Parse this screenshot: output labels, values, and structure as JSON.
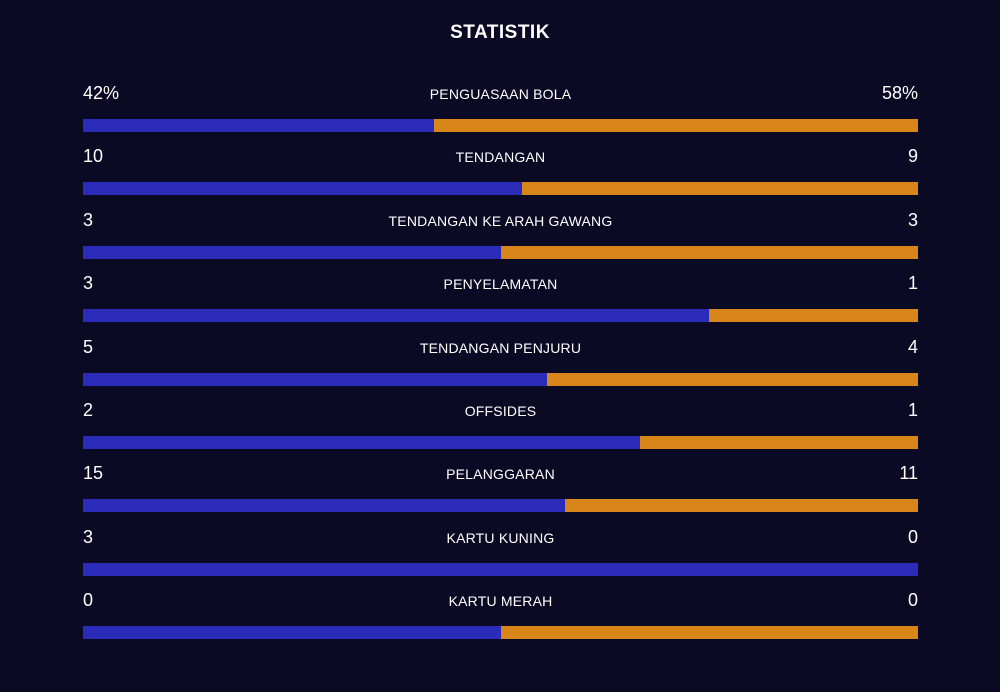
{
  "title": "STATISTIK",
  "colors": {
    "background": "#0a0a24",
    "home": "#2a2bb8",
    "away": "#d8851a"
  },
  "stats": [
    {
      "label": "PENGUASAAN BOLA",
      "home": "42%",
      "away": "58%",
      "home_share": 0.42
    },
    {
      "label": "TENDANGAN",
      "home": "10",
      "away": "9",
      "home_share": 0.526
    },
    {
      "label": "TENDANGAN KE ARAH GAWANG",
      "home": "3",
      "away": "3",
      "home_share": 0.5
    },
    {
      "label": "PENYELAMATAN",
      "home": "3",
      "away": "1",
      "home_share": 0.75
    },
    {
      "label": "TENDANGAN PENJURU",
      "home": "5",
      "away": "4",
      "home_share": 0.556
    },
    {
      "label": "OFFSIDES",
      "home": "2",
      "away": "1",
      "home_share": 0.667
    },
    {
      "label": "PELANGGARAN",
      "home": "15",
      "away": "11",
      "home_share": 0.577
    },
    {
      "label": "KARTU KUNING",
      "home": "3",
      "away": "0",
      "home_share": 1.0
    },
    {
      "label": "KARTU MERAH",
      "home": "0",
      "away": "0",
      "home_share": 0.5
    }
  ]
}
